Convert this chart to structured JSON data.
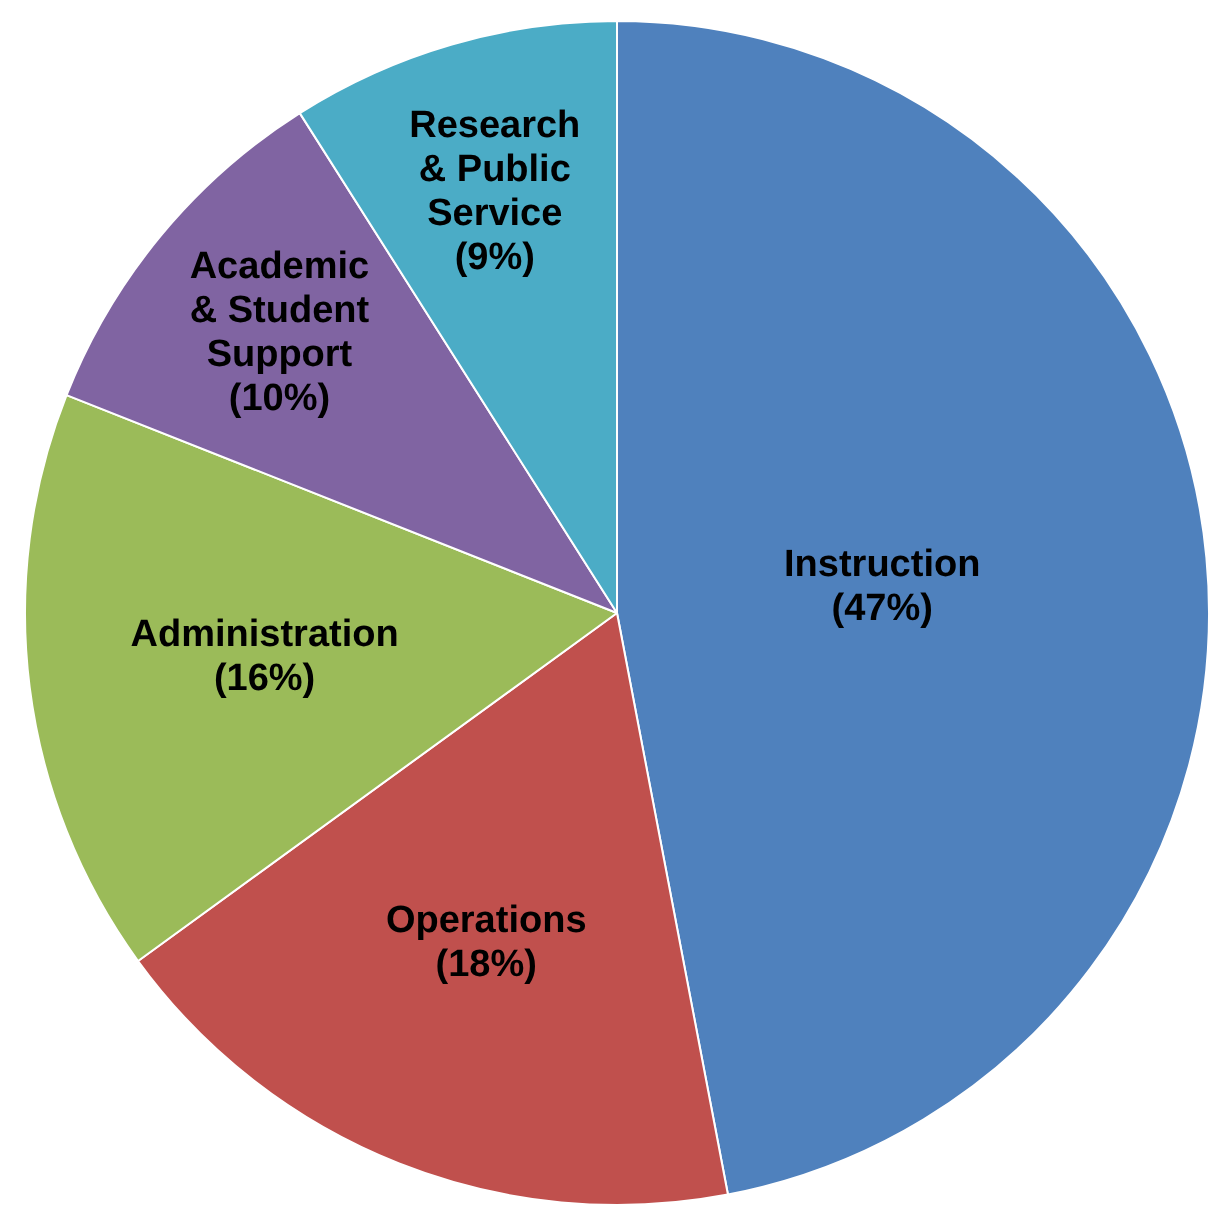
{
  "chart_data": {
    "type": "pie",
    "categories": [
      "Instruction",
      "Operations",
      "Administration",
      "Academic & Student Support",
      "Research & Public Service"
    ],
    "values": [
      47,
      18,
      16,
      10,
      9
    ],
    "value_labels": [
      "(47%)",
      "(18%)",
      "(16%)",
      "(10%)",
      "(9%)"
    ],
    "colors": [
      "#4f81bd",
      "#c0504d",
      "#9bbb59",
      "#8064a2",
      "#4bacc6"
    ],
    "legend": false
  }
}
